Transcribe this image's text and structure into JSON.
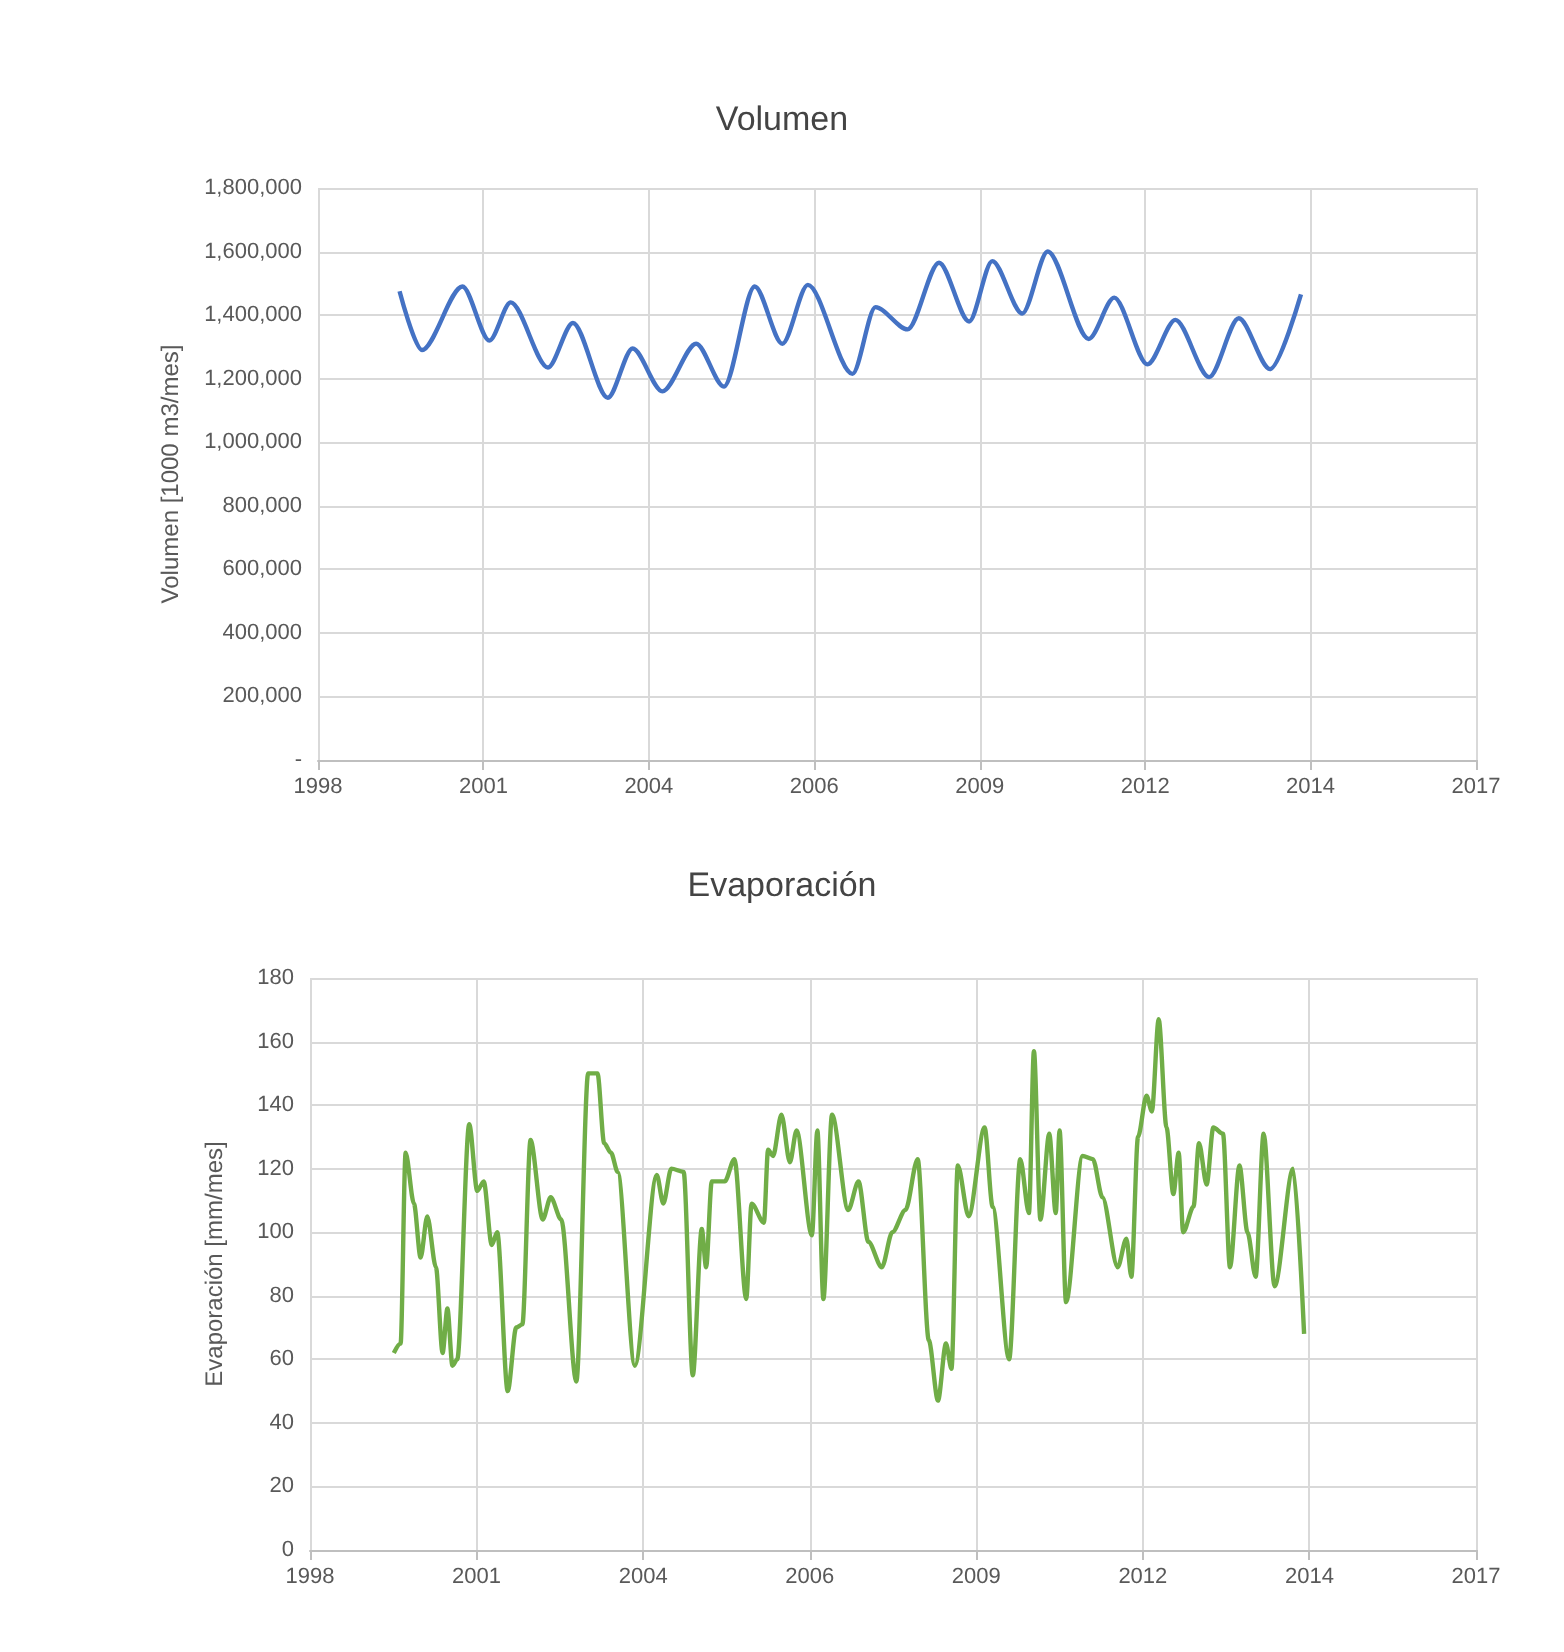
{
  "chart_data": [
    {
      "type": "line",
      "title": "Volumen",
      "ylabel": "Volumen [1000 m3/mes]",
      "x": [
        "1999-11-25",
        "2000-04-08",
        "2000-12-09",
        "2001-05-21",
        "2001-09-27",
        "2002-05-10",
        "2002-10-08",
        "2003-05-07",
        "2003-10-04",
        "2004-04-01",
        "2004-10-22",
        "2005-04-08",
        "2005-10-11",
        "2006-03-27",
        "2006-08-28",
        "2007-05-25",
        "2007-10-11",
        "2008-04-22",
        "2008-10-29",
        "2009-04-29",
        "2009-09-16",
        "2010-03-16",
        "2010-08-17",
        "2011-04-22",
        "2011-09-23",
        "2012-04-11",
        "2012-09-27",
        "2013-04-19",
        "2013-10-15",
        "2014-04-22",
        "2014-10-26"
      ],
      "series": [
        {
          "color": "#4472c4",
          "values": [
            1475000,
            1290000,
            1490000,
            1320000,
            1440000,
            1235000,
            1375000,
            1140000,
            1295000,
            1160000,
            1310000,
            1175000,
            1490000,
            1310000,
            1495000,
            1215000,
            1425000,
            1355000,
            1565000,
            1380000,
            1570000,
            1405000,
            1600000,
            1325000,
            1455000,
            1245000,
            1385000,
            1205000,
            1390000,
            1230000,
            1465000
          ]
        }
      ],
      "xlim": [
        "1998-07-20",
        "2017-09-18"
      ],
      "xticks": [
        {
          "value": "1998-07-20",
          "label": "1998"
        },
        {
          "value": "2001-04-15",
          "label": "2001"
        },
        {
          "value": "2004-01-10",
          "label": "2004"
        },
        {
          "value": "2006-10-06",
          "label": "2006"
        },
        {
          "value": "2009-07-02",
          "label": "2009"
        },
        {
          "value": "2012-03-28",
          "label": "2012"
        },
        {
          "value": "2014-12-23",
          "label": "2014"
        },
        {
          "value": "2017-09-18",
          "label": "2017"
        }
      ],
      "ylim": [
        0,
        1800000
      ],
      "yticks": [
        {
          "value": 0,
          "label": "-"
        },
        {
          "value": 200000,
          "label": "200,000"
        },
        {
          "value": 400000,
          "label": "400,000"
        },
        {
          "value": 600000,
          "label": "600,000"
        },
        {
          "value": 800000,
          "label": "800,000"
        },
        {
          "value": 1000000,
          "label": "1,000,000"
        },
        {
          "value": 1200000,
          "label": "1,200,000"
        },
        {
          "value": 1400000,
          "label": "1,400,000"
        },
        {
          "value": 1600000,
          "label": "1,600,000"
        },
        {
          "value": 1800000,
          "label": "1,800,000"
        }
      ],
      "grid": true
    },
    {
      "type": "line",
      "title": "Evaporación",
      "ylabel": "Evaporación [mm/mes]",
      "x": [
        "1999-12-05",
        "2000-01-15",
        "2000-02-14",
        "2000-04-04",
        "2000-05-14",
        "2000-06-23",
        "2000-08-14",
        "2000-09-23",
        "2000-10-22",
        "2000-11-21",
        "2000-12-20",
        "2001-03-02",
        "2001-04-19",
        "2001-05-28",
        "2001-07-15",
        "2001-08-17",
        "2001-10-19",
        "2001-12-09",
        "2002-01-15",
        "2002-03-05",
        "2002-05-17",
        "2002-07-04",
        "2002-09-05",
        "2002-12-05",
        "2003-02-14",
        "2003-04-11",
        "2003-05-21",
        "2003-07-01",
        "2003-08-10",
        "2003-11-21",
        "2004-04-01",
        "2004-05-10",
        "2004-06-27",
        "2004-09-09",
        "2004-11-03",
        "2004-12-27",
        "2005-01-22",
        "2005-02-25",
        "2005-05-14",
        "2005-07-11",
        "2005-09-20",
        "2005-10-22",
        "2006-01-04",
        "2006-01-29",
        "2006-02-28",
        "2006-04-19",
        "2006-06-09",
        "2006-07-19",
        "2006-10-19",
        "2006-11-21",
        "2006-12-27",
        "2007-02-17",
        "2007-05-25",
        "2007-07-26",
        "2007-09-23",
        "2007-12-13",
        "2008-02-14",
        "2008-05-03",
        "2008-07-15",
        "2008-09-20",
        "2008-11-14",
        "2009-01-01",
        "2009-02-03",
        "2009-03-13",
        "2009-05-17",
        "2009-08-21",
        "2009-10-08",
        "2010-01-15",
        "2010-03-23",
        "2010-05-14",
        "2010-06-13",
        "2010-07-22",
        "2010-09-13",
        "2010-10-22",
        "2010-11-14",
        "2010-12-23",
        "2011-04-01",
        "2011-06-02",
        "2011-07-29",
        "2011-10-29",
        "2011-12-20",
        "2012-01-19",
        "2012-02-28",
        "2012-04-19",
        "2012-05-21",
        "2012-07-01",
        "2012-08-17",
        "2012-09-27",
        "2012-10-29",
        "2012-11-25",
        "2013-01-26",
        "2013-02-28",
        "2013-04-15",
        "2013-05-25",
        "2013-07-22",
        "2013-09-02",
        "2013-10-29",
        "2013-12-16",
        "2014-02-03",
        "2014-03-23",
        "2014-05-28",
        "2014-09-16",
        "2014-11-21"
      ],
      "series": [
        {
          "color": "#70ad47",
          "values": [
            62,
            65,
            125,
            109,
            92,
            105,
            89,
            62,
            76,
            58,
            60,
            134,
            113,
            116,
            96,
            100,
            50,
            70,
            71,
            129,
            104,
            111,
            104,
            53,
            150,
            150,
            128,
            125,
            119,
            58,
            118,
            109,
            120,
            119,
            55,
            101,
            89,
            116,
            116,
            123,
            79,
            109,
            103,
            126,
            124,
            137,
            122,
            132,
            99,
            132,
            79,
            137,
            107,
            116,
            97,
            89,
            100,
            107,
            123,
            66,
            47,
            65,
            57,
            121,
            105,
            133,
            108,
            60,
            123,
            106,
            157,
            104,
            131,
            106,
            132,
            78,
            124,
            123,
            111,
            89,
            98,
            86,
            130,
            143,
            138,
            167,
            133,
            112,
            125,
            100,
            108,
            128,
            115,
            133,
            131,
            89,
            121,
            100,
            86,
            131,
            83,
            120,
            68
          ]
        }
      ],
      "xlim": [
        "1998-07-20",
        "2017-09-18"
      ],
      "xticks": [
        {
          "value": "1998-07-20",
          "label": "1998"
        },
        {
          "value": "2001-04-15",
          "label": "2001"
        },
        {
          "value": "2004-01-10",
          "label": "2004"
        },
        {
          "value": "2006-10-06",
          "label": "2006"
        },
        {
          "value": "2009-07-02",
          "label": "2009"
        },
        {
          "value": "2012-03-28",
          "label": "2012"
        },
        {
          "value": "2014-12-23",
          "label": "2014"
        },
        {
          "value": "2017-09-18",
          "label": "2017"
        }
      ],
      "ylim": [
        0,
        180
      ],
      "yticks": [
        0,
        20,
        40,
        60,
        80,
        100,
        120,
        140,
        160,
        180
      ],
      "grid": true
    }
  ]
}
